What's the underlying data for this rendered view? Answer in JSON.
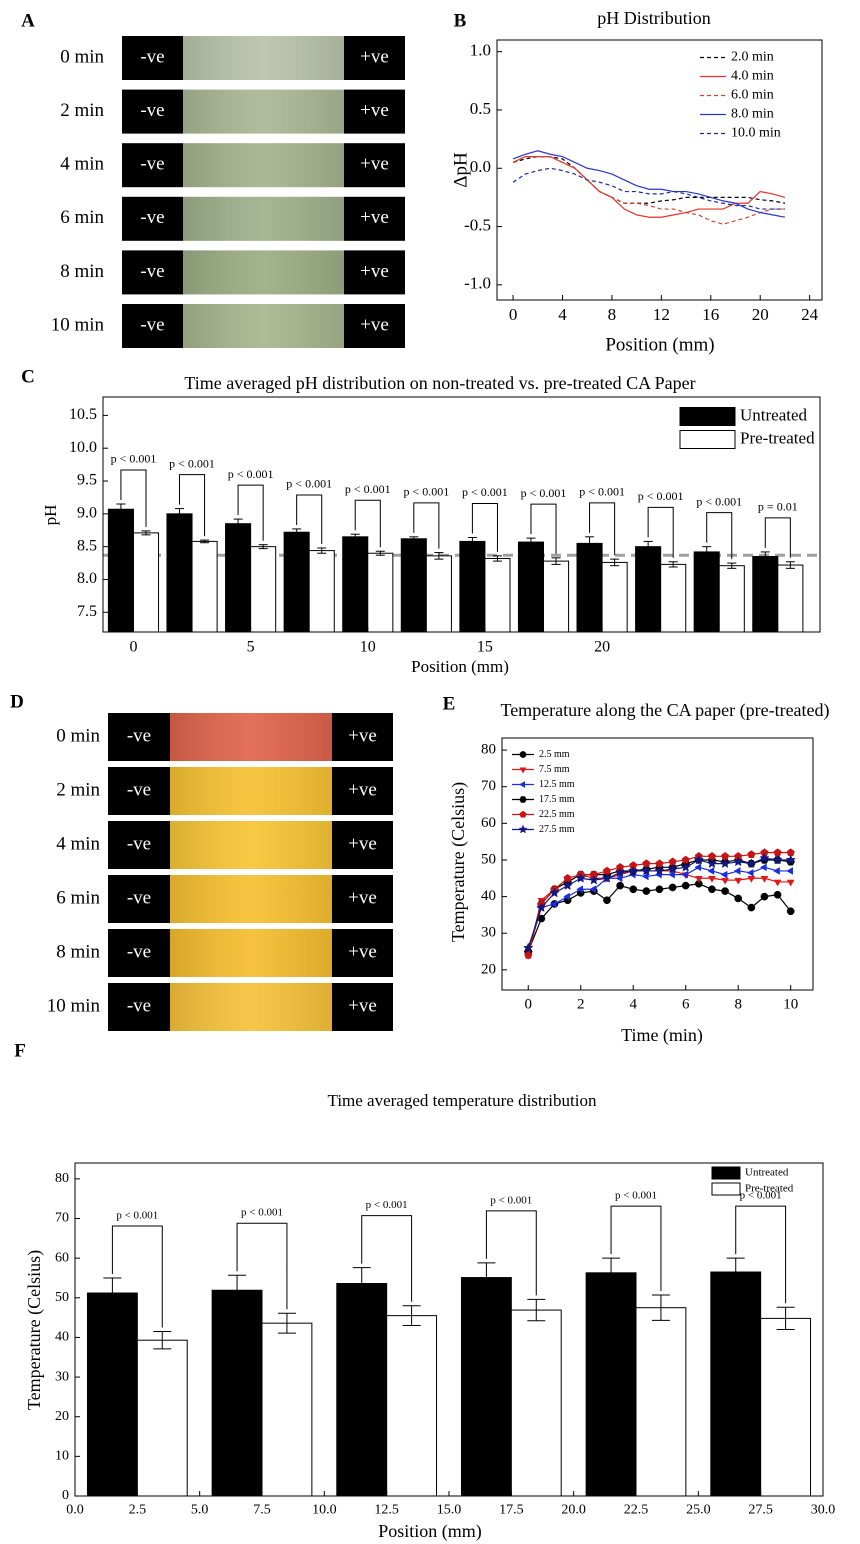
{
  "image_panels": [
    {
      "panel": "A",
      "negative_label": "-ve",
      "positive_label": "+ve",
      "rows": [
        {
          "time": "0 min",
          "color": "#b9c3a8"
        },
        {
          "time": "2 min",
          "color": "#a9b894"
        },
        {
          "time": "4 min",
          "color": "#a3b38c"
        },
        {
          "time": "6 min",
          "color": "#9fb08a"
        },
        {
          "time": "8 min",
          "color": "#9aad84"
        },
        {
          "time": "10 min",
          "color": "#a6b58e"
        }
      ]
    },
    {
      "panel": "D",
      "negative_label": "-ve",
      "positive_label": "+ve",
      "rows": [
        {
          "time": "0 min",
          "color": "#e0644c"
        },
        {
          "time": "2 min",
          "color": "#f6c232"
        },
        {
          "time": "4 min",
          "color": "#f7c535"
        },
        {
          "time": "6 min",
          "color": "#f6c030"
        },
        {
          "time": "8 min",
          "color": "#f5bd2e"
        },
        {
          "time": "10 min",
          "color": "#f6c23a"
        }
      ]
    }
  ],
  "chart_data": [
    {
      "type": "line",
      "panel": "B",
      "title": "pH Distribution",
      "x_label": "Position (mm)",
      "y_label": "ΔpH",
      "x": [
        0,
        1,
        2,
        3,
        4,
        5,
        6,
        7,
        8,
        9,
        10,
        11,
        12,
        13,
        14,
        15,
        16,
        17,
        18,
        19,
        20,
        21,
        22
      ],
      "xlim": [
        -1.3,
        25
      ],
      "xticks": [
        0,
        4,
        8,
        12,
        16,
        20,
        24
      ],
      "ylim": [
        -1.13,
        1.1
      ],
      "yticks": [
        {
          "value": -1,
          "label": "-1.0"
        },
        -0.5,
        {
          "value": 0,
          "label": "0.0"
        },
        0.5,
        {
          "value": 1,
          "label": "1.0"
        }
      ],
      "legend": "upper right",
      "series": [
        {
          "name": "2.0 min",
          "color": "#000000",
          "dashed": true,
          "values": [
            0.05,
            0.08,
            0.1,
            0.1,
            0.08,
            0,
            -0.1,
            -0.2,
            -0.25,
            -0.3,
            -0.3,
            -0.3,
            -0.28,
            -0.27,
            -0.25,
            -0.25,
            -0.25,
            -0.25,
            -0.25,
            -0.25,
            -0.27,
            -0.28,
            -0.3
          ]
        },
        {
          "name": "4.0 min",
          "color": "#e8312a",
          "dashed": false,
          "values": [
            0.05,
            0.1,
            0.1,
            0.1,
            0.05,
            0,
            -0.1,
            -0.2,
            -0.25,
            -0.35,
            -0.4,
            -0.42,
            -0.42,
            -0.4,
            -0.38,
            -0.35,
            -0.35,
            -0.35,
            -0.3,
            -0.3,
            -0.2,
            -0.22,
            -0.25
          ]
        },
        {
          "name": "6.0 min",
          "color": "#d9402e",
          "dashed": true,
          "values": [
            0.05,
            0.1,
            0.1,
            0.1,
            0.05,
            0,
            -0.1,
            -0.2,
            -0.25,
            -0.3,
            -0.3,
            -0.32,
            -0.35,
            -0.35,
            -0.38,
            -0.4,
            -0.45,
            -0.48,
            -0.45,
            -0.42,
            -0.38,
            -0.35,
            -0.35
          ]
        },
        {
          "name": "8.0 min",
          "color": "#2b35c8",
          "dashed": false,
          "values": [
            0.08,
            0.12,
            0.15,
            0.12,
            0.1,
            0.05,
            0,
            -0.02,
            -0.05,
            -0.1,
            -0.15,
            -0.18,
            -0.18,
            -0.2,
            -0.2,
            -0.22,
            -0.25,
            -0.28,
            -0.3,
            -0.35,
            -0.38,
            -0.4,
            -0.42
          ]
        },
        {
          "name": "10.0 min",
          "color": "#1a2aa0",
          "dashed": true,
          "values": [
            -0.12,
            -0.05,
            -0.02,
            0,
            -0.02,
            -0.05,
            -0.1,
            -0.12,
            -0.15,
            -0.2,
            -0.2,
            -0.22,
            -0.22,
            -0.2,
            -0.22,
            -0.25,
            -0.28,
            -0.3,
            -0.32,
            -0.32,
            -0.35,
            -0.35,
            -0.35
          ]
        }
      ]
    },
    {
      "type": "bar",
      "panel": "C",
      "title": "Time averaged pH distribution on non-treated vs. pre-treated CA Paper",
      "x_label": "Position (mm)",
      "y_label": "pH",
      "x": [
        0,
        2.5,
        5,
        7.5,
        10,
        12.5,
        15,
        17.5,
        20,
        22.5,
        25,
        27.5
      ],
      "xlim": [
        -1.3,
        29.3
      ],
      "xticks": [
        0,
        5,
        10,
        15,
        20
      ],
      "ylim": [
        7.2,
        10.78
      ],
      "yticks": [
        7.5,
        {
          "value": 8,
          "label": "8.0"
        },
        8.5,
        {
          "value": 9,
          "label": "9.0"
        },
        9.5,
        {
          "value": 10,
          "label": "10.0"
        },
        10.5
      ],
      "legend": "upper right",
      "reference_line": {
        "value": 8.37,
        "color": "#a0a0a0",
        "dashed": true
      },
      "series": [
        {
          "name": "Untreated",
          "color": "#000000",
          "values": [
            9.07,
            9.0,
            8.85,
            8.72,
            8.65,
            8.62,
            8.58,
            8.57,
            8.55,
            8.5,
            8.42,
            8.35
          ],
          "errors": [
            0.08,
            0.08,
            0.07,
            0.05,
            0.04,
            0.03,
            0.06,
            0.06,
            0.1,
            0.08,
            0.08,
            0.07
          ]
        },
        {
          "name": "Pre-treated",
          "color": "#ffffff",
          "values": [
            8.71,
            8.58,
            8.5,
            8.44,
            8.4,
            8.36,
            8.32,
            8.28,
            8.26,
            8.23,
            8.21,
            8.22
          ],
          "errors": [
            0.03,
            0.02,
            0.03,
            0.04,
            0.03,
            0.05,
            0.04,
            0.05,
            0.05,
            0.04,
            0.04,
            0.05
          ]
        }
      ],
      "annotations": [
        "p < 0.001",
        "p < 0.001",
        "p < 0.001",
        "p < 0.001",
        "p < 0.001",
        "p < 0.001",
        "p < 0.001",
        "p < 0.001",
        "p < 0.001",
        "p < 0.001",
        "p < 0.001",
        "p = 0.01"
      ]
    },
    {
      "type": "line",
      "panel": "E",
      "title": "Temperature along the CA paper (pre-treated)",
      "x_label": "Time (min)",
      "y_label": "Temperature (Celsius)",
      "x": [
        0,
        0.5,
        1,
        1.5,
        2,
        2.5,
        3,
        3.5,
        4,
        4.5,
        5,
        5.5,
        6,
        6.5,
        7,
        7.5,
        8,
        8.5,
        9,
        9.5,
        10
      ],
      "xlim": [
        -1,
        10.85
      ],
      "xticks": [
        0,
        2,
        4,
        6,
        8,
        10
      ],
      "ylim": [
        14.5,
        83.3
      ],
      "yticks": [
        20,
        30,
        40,
        50,
        60,
        70,
        80
      ],
      "legend": "upper left",
      "series": [
        {
          "name": "2.5 mm",
          "color": "#000000",
          "marker": "circle",
          "values": [
            25,
            34,
            38,
            39,
            41,
            41.5,
            39,
            43,
            42,
            41.5,
            42,
            42.5,
            43,
            43.5,
            42,
            41.5,
            39.5,
            37,
            40,
            40.5,
            36
          ]
        },
        {
          "name": "7.5 mm",
          "color": "#e01818",
          "marker": "triangle-down",
          "values": [
            24,
            39,
            42,
            44,
            46,
            45,
            45,
            46,
            47,
            47,
            47,
            47,
            46,
            45,
            45,
            44.5,
            44.5,
            45,
            45,
            44,
            44
          ]
        },
        {
          "name": "12.5 mm",
          "color": "#1a2ee0",
          "marker": "triangle-left",
          "values": [
            25,
            37,
            38,
            40,
            42,
            42,
            45,
            45,
            46,
            45.5,
            46,
            46,
            46,
            48,
            47,
            46,
            47,
            46.5,
            48,
            47,
            47
          ]
        },
        {
          "name": "17.5 mm",
          "color": "#000000",
          "marker": "hexagon",
          "values": [
            25,
            38,
            42,
            44,
            46,
            46,
            46,
            47,
            47,
            47.5,
            48,
            48,
            49,
            50,
            50,
            49.5,
            50,
            49,
            50,
            50,
            49.5
          ]
        },
        {
          "name": "22.5 mm",
          "color": "#c81414",
          "marker": "pentagon",
          "values": [
            24,
            38,
            42,
            45,
            46,
            46,
            47,
            48,
            48.5,
            49,
            49,
            49.5,
            50,
            51,
            51,
            51,
            51,
            51.5,
            52,
            52,
            52
          ]
        },
        {
          "name": "27.5 mm",
          "color": "#101880",
          "marker": "star",
          "values": [
            26,
            37,
            41,
            43,
            45,
            44.5,
            45,
            46.5,
            47,
            47,
            47,
            47.5,
            48,
            50,
            49,
            49,
            49.5,
            49,
            50.5,
            50,
            50
          ]
        }
      ]
    },
    {
      "type": "bar",
      "panel": "F",
      "title": "Time averaged temperature distribution",
      "x_label": "Position (mm)",
      "y_label": "Temperature (Celsius)",
      "x": [
        2.5,
        7.5,
        12.5,
        17.5,
        22.5,
        27.5
      ],
      "xlim": [
        0,
        30
      ],
      "xticks": [
        {
          "value": 0,
          "label": "0.0"
        },
        2.5,
        {
          "value": 5,
          "label": "5.0"
        },
        7.5,
        {
          "value": 10,
          "label": "10.0"
        },
        12.5,
        {
          "value": 15,
          "label": "15.0"
        },
        17.5,
        {
          "value": 20,
          "label": "20.0"
        },
        22.5,
        {
          "value": 25,
          "label": "25.0"
        },
        27.5,
        {
          "value": 30,
          "label": "30.0"
        }
      ],
      "ylim": [
        0,
        84
      ],
      "yticks": [
        0,
        10,
        20,
        30,
        40,
        50,
        60,
        70,
        80
      ],
      "legend": "upper right",
      "series": [
        {
          "name": "Untreated",
          "color": "#000000",
          "values": [
            51.2,
            51.9,
            53.6,
            55.1,
            56.3,
            56.5
          ],
          "errors": [
            3.8,
            3.8,
            4,
            3.7,
            3.7,
            3.5
          ]
        },
        {
          "name": "Pre-treated",
          "color": "#ffffff",
          "values": [
            39.3,
            43.6,
            45.5,
            46.9,
            47.5,
            44.8
          ],
          "errors": [
            2.2,
            2.5,
            2.5,
            2.7,
            3.2,
            2.8
          ]
        }
      ],
      "annotations": [
        "p < 0.001",
        "p < 0.001",
        "p < 0.001",
        "p < 0.001",
        "p < 0.001",
        "p < 0.001"
      ]
    }
  ]
}
